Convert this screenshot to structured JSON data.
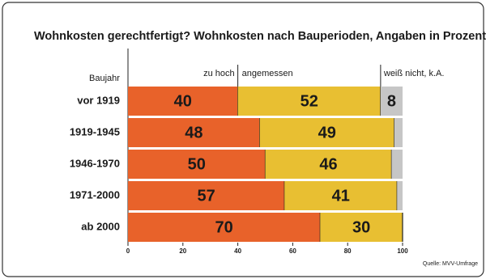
{
  "chart_data": {
    "type": "stacked-bar-horizontal",
    "title": "Wohnkosten gerechtfertigt? Wohnkosten nach Bauperioden, Angaben in Prozent",
    "category_axis_label": "Baujahr",
    "categories": [
      "vor 1919",
      "1919-1945",
      "1946-1970",
      "1971-2000",
      "ab 2000"
    ],
    "series": [
      {
        "name": "zu hoch",
        "color": "#e8622a",
        "values": [
          40,
          48,
          50,
          57,
          70
        ]
      },
      {
        "name": "angemessen",
        "color": "#e8bf32",
        "values": [
          52,
          49,
          46,
          41,
          30
        ]
      },
      {
        "name": "weiß nicht, k.A.",
        "color": "#c6c6c6",
        "values": [
          8,
          3,
          4,
          2,
          0
        ],
        "value_labels": [
          "8",
          null,
          null,
          null,
          null
        ]
      }
    ],
    "xlim": [
      0,
      100
    ],
    "xticks": [
      0,
      20,
      40,
      60,
      80,
      100
    ],
    "source": "Quelle: MVV-Umfrage"
  }
}
